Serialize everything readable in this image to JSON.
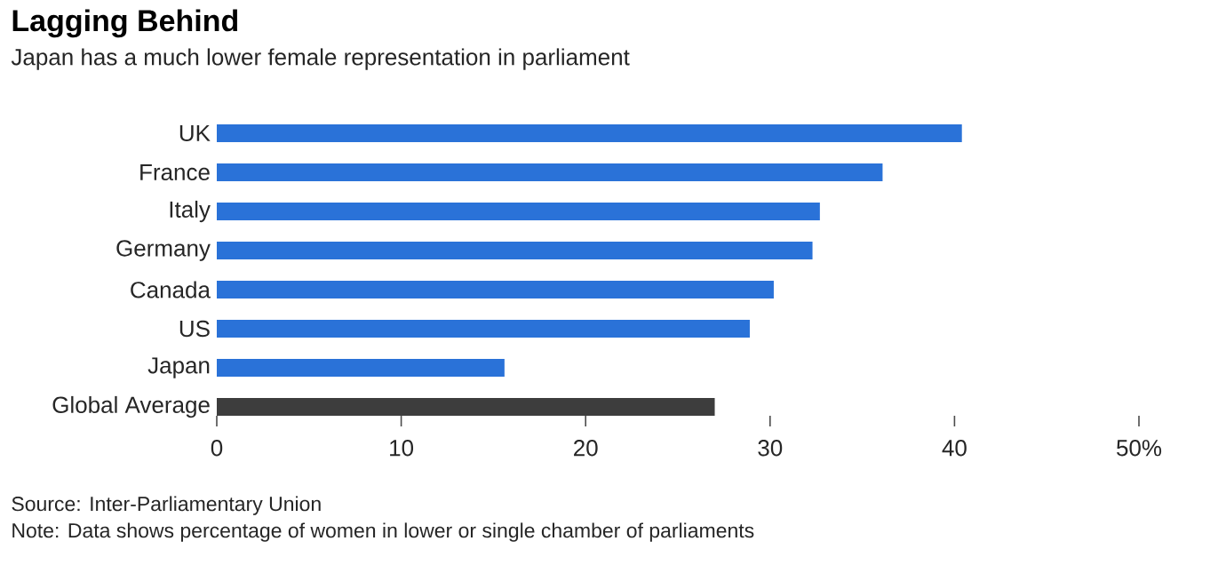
{
  "chart_data": {
    "type": "bar",
    "orientation": "horizontal",
    "title": "Lagging Behind",
    "subtitle": "Japan has a much lower female representation in parliament",
    "categories": [
      "UK",
      "France",
      "Italy",
      "Germany",
      "Canada",
      "US",
      "Japan",
      "Global Average"
    ],
    "values": [
      40.4,
      36.1,
      32.7,
      32.3,
      30.2,
      28.9,
      15.6,
      27.0
    ],
    "colors": [
      "#2a72d8",
      "#2a72d8",
      "#2a72d8",
      "#2a72d8",
      "#2a72d8",
      "#2a72d8",
      "#2a72d8",
      "#3d3d3d"
    ],
    "xlim": [
      0,
      50
    ],
    "xticks": [
      0,
      10,
      20,
      30,
      40,
      {
        "value": 50,
        "label": "50%"
      }
    ],
    "annotations": [
      "Source: Inter-Parliamentary Union",
      "Note: Data shows percentage of women in lower or single chamber of parliaments"
    ]
  }
}
